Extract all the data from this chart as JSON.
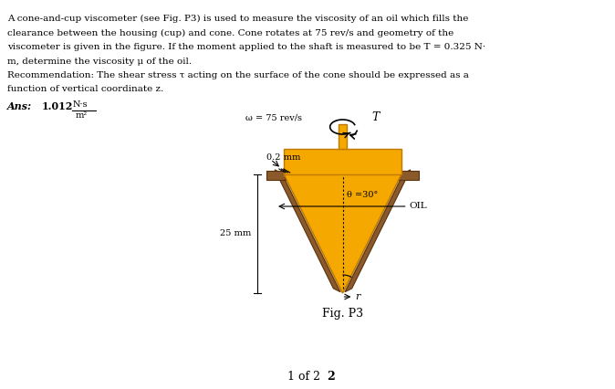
{
  "background_color": "#ffffff",
  "text_block": [
    "A cone-and-cup viscometer (see Fig. P3) is used to measure the viscosity of an oil which fills the",
    "clearance between the housing (cup) and cone. Cone rotates at 75 rev/s and geometry of the",
    "viscometer is given in the figure. If the moment applied to the shaft is measured to be T = 0.325 N·",
    "m, determine the viscosity μ of the oil.",
    "Recommendation: The shear stress τ acting on the surface of the cone should be expressed as a",
    "function of vertical coordinate z."
  ],
  "ans_label": "Ans:",
  "ans_value": "1.012",
  "ans_units_top": "N·s",
  "ans_units_bot": "m²",
  "fig_label": "Fig. P3",
  "page_label": "1 of 2",
  "cone_color": "#f5a800",
  "cup_color": "#8B5A2B",
  "cup_color2": "#a0522d",
  "shaft_color": "#f5a800",
  "oil_label": "OIL",
  "omega_label": "ω = 75 rev/s",
  "T_label": "T",
  "angle_label": "θ =30°",
  "dim_02": "0.2 mm",
  "dim_25": "25 mm",
  "r_label": "r"
}
